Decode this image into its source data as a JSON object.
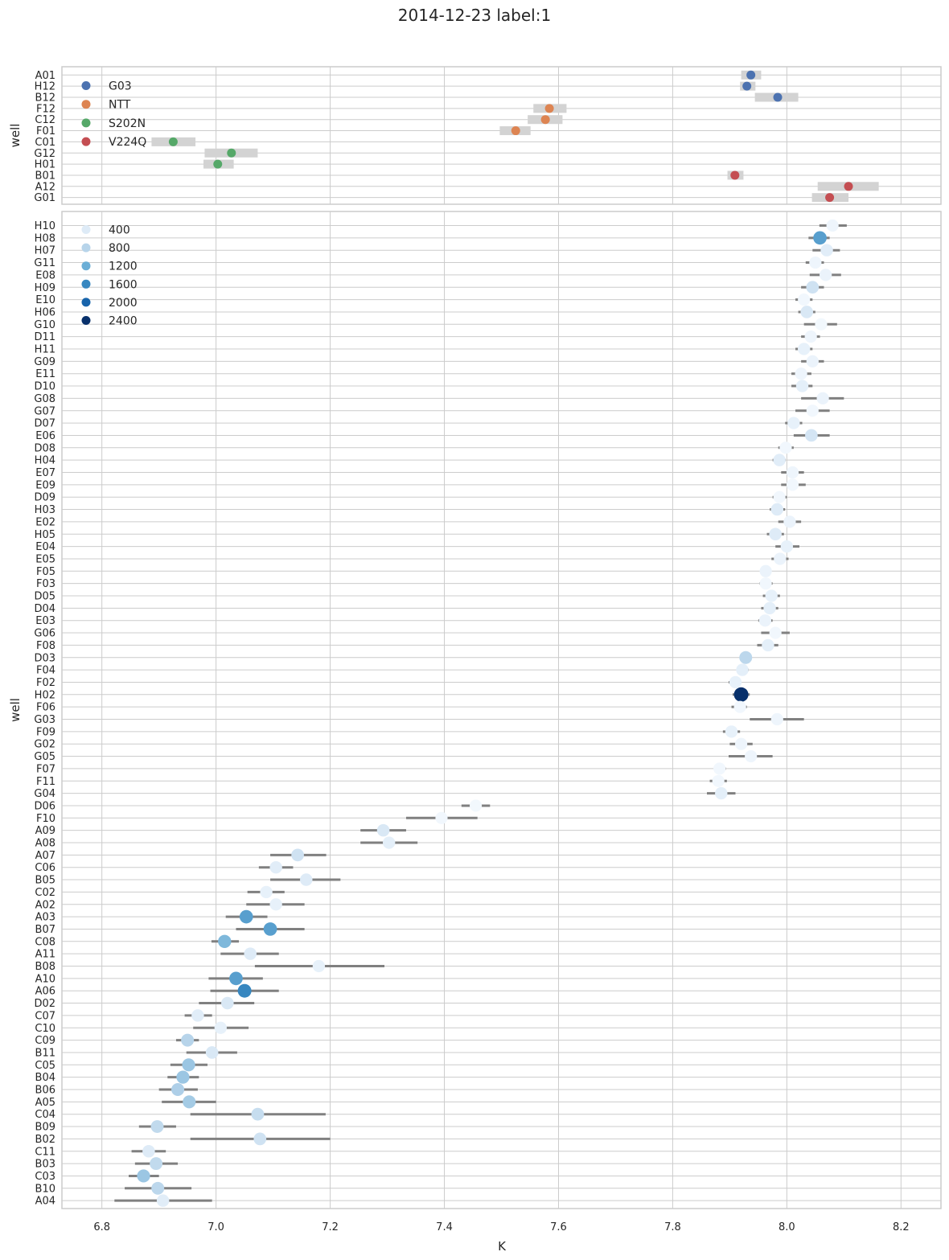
{
  "figure": {
    "title": "2014-12-23  label:1",
    "xlabel": "K",
    "xlim": [
      6.73,
      8.27
    ],
    "xticks": [
      "6.8",
      "7.0",
      "7.2",
      "7.4",
      "7.6",
      "7.8",
      "8.0",
      "8.2"
    ]
  },
  "chart_data": [
    {
      "type": "scatter",
      "panel": "top",
      "ylabel": "well",
      "xlim": [
        6.73,
        8.27
      ],
      "grid": true,
      "legend_placement": "upper-left",
      "legend_title": "",
      "series": [
        {
          "name": "G03",
          "color": "#4c72b0"
        },
        {
          "name": "NTT",
          "color": "#dd8452"
        },
        {
          "name": "S202N",
          "color": "#55a868"
        },
        {
          "name": "V224Q",
          "color": "#c44e52"
        }
      ],
      "error_bar_color": "#d3d3d3",
      "rows": [
        {
          "well": "A01",
          "series": "G03",
          "k": 7.937,
          "lo": 7.92,
          "hi": 7.955
        },
        {
          "well": "H12",
          "series": "G03",
          "k": 7.93,
          "lo": 7.918,
          "hi": 7.945
        },
        {
          "well": "B12",
          "series": "G03",
          "k": 7.984,
          "lo": 7.944,
          "hi": 8.02
        },
        {
          "well": "F12",
          "series": "NTT",
          "k": 7.584,
          "lo": 7.556,
          "hi": 7.614
        },
        {
          "well": "C12",
          "series": "NTT",
          "k": 7.577,
          "lo": 7.546,
          "hi": 7.607
        },
        {
          "well": "F01",
          "series": "NTT",
          "k": 7.525,
          "lo": 7.497,
          "hi": 7.551
        },
        {
          "well": "C01",
          "series": "S202N",
          "k": 6.925,
          "lo": 6.887,
          "hi": 6.964
        },
        {
          "well": "G12",
          "series": "S202N",
          "k": 7.027,
          "lo": 6.98,
          "hi": 7.073
        },
        {
          "well": "H01",
          "series": "S202N",
          "k": 7.003,
          "lo": 6.978,
          "hi": 7.031
        },
        {
          "well": "B01",
          "series": "V224Q",
          "k": 7.909,
          "lo": 7.896,
          "hi": 7.924
        },
        {
          "well": "A12",
          "series": "V224Q",
          "k": 8.108,
          "lo": 8.054,
          "hi": 8.161
        },
        {
          "well": "G01",
          "series": "V224Q",
          "k": 8.075,
          "lo": 8.044,
          "hi": 8.108
        }
      ]
    },
    {
      "type": "scatter",
      "panel": "bottom",
      "ylabel": "well",
      "xlim": [
        6.73,
        8.27
      ],
      "grid": true,
      "legend_placement": "upper-left",
      "legend_title": "",
      "legend_entries": [
        {
          "label": "400",
          "color": "#deebf7"
        },
        {
          "label": "800",
          "color": "#b7d4ea"
        },
        {
          "label": "1200",
          "color": "#6baed6"
        },
        {
          "label": "1600",
          "color": "#3787c0"
        },
        {
          "label": "2000",
          "color": "#1764ab"
        },
        {
          "label": "2400",
          "color": "#08306b"
        }
      ],
      "error_bar_color": "#808080",
      "rows": [
        {
          "well": "H10",
          "k": 8.08,
          "lo": 8.057,
          "hi": 8.105,
          "v": 150
        },
        {
          "well": "H08",
          "k": 8.058,
          "lo": 8.038,
          "hi": 8.075,
          "v": 1350
        },
        {
          "well": "H07",
          "k": 8.07,
          "lo": 8.045,
          "hi": 8.093,
          "v": 350
        },
        {
          "well": "G11",
          "k": 8.05,
          "lo": 8.033,
          "hi": 8.065,
          "v": 150
        },
        {
          "well": "E08",
          "k": 8.068,
          "lo": 8.04,
          "hi": 8.095,
          "v": 200
        },
        {
          "well": "H09",
          "k": 8.045,
          "lo": 8.025,
          "hi": 8.065,
          "v": 550
        },
        {
          "well": "E10",
          "k": 8.03,
          "lo": 8.015,
          "hi": 8.045,
          "v": 100
        },
        {
          "well": "H06",
          "k": 8.035,
          "lo": 8.02,
          "hi": 8.05,
          "v": 450
        },
        {
          "well": "G10",
          "k": 8.06,
          "lo": 8.03,
          "hi": 8.088,
          "v": 80
        },
        {
          "well": "D11",
          "k": 8.042,
          "lo": 8.025,
          "hi": 8.058,
          "v": 150
        },
        {
          "well": "H11",
          "k": 8.03,
          "lo": 8.015,
          "hi": 8.045,
          "v": 250
        },
        {
          "well": "G09",
          "k": 8.045,
          "lo": 8.025,
          "hi": 8.065,
          "v": 200
        },
        {
          "well": "E11",
          "k": 8.025,
          "lo": 8.008,
          "hi": 8.043,
          "v": 150
        },
        {
          "well": "D10",
          "k": 8.027,
          "lo": 8.008,
          "hi": 8.045,
          "v": 300
        },
        {
          "well": "G08",
          "k": 8.063,
          "lo": 8.025,
          "hi": 8.1,
          "v": 200
        },
        {
          "well": "G07",
          "k": 8.045,
          "lo": 8.015,
          "hi": 8.075,
          "v": 100
        },
        {
          "well": "D07",
          "k": 8.012,
          "lo": 7.997,
          "hi": 8.027,
          "v": 250
        },
        {
          "well": "E06",
          "k": 8.043,
          "lo": 8.012,
          "hi": 8.075,
          "v": 500
        },
        {
          "well": "D08",
          "k": 7.998,
          "lo": 7.985,
          "hi": 8.012,
          "v": 100
        },
        {
          "well": "H04",
          "k": 7.987,
          "lo": 7.975,
          "hi": 7.998,
          "v": 350
        },
        {
          "well": "E07",
          "k": 8.01,
          "lo": 7.99,
          "hi": 8.03,
          "v": 150
        },
        {
          "well": "E09",
          "k": 8.01,
          "lo": 7.99,
          "hi": 8.033,
          "v": 100
        },
        {
          "well": "D09",
          "k": 7.987,
          "lo": 7.975,
          "hi": 8.0,
          "v": 100
        },
        {
          "well": "H03",
          "k": 7.983,
          "lo": 7.97,
          "hi": 7.997,
          "v": 400
        },
        {
          "well": "E02",
          "k": 8.005,
          "lo": 7.985,
          "hi": 8.025,
          "v": 200
        },
        {
          "well": "H05",
          "k": 7.98,
          "lo": 7.965,
          "hi": 7.995,
          "v": 400
        },
        {
          "well": "E04",
          "k": 8.0,
          "lo": 7.98,
          "hi": 8.022,
          "v": 250
        },
        {
          "well": "E05",
          "k": 7.988,
          "lo": 7.973,
          "hi": 8.003,
          "v": 200
        },
        {
          "well": "F05",
          "k": 7.963,
          "lo": 7.953,
          "hi": 7.973,
          "v": 200
        },
        {
          "well": "F03",
          "k": 7.963,
          "lo": 7.952,
          "hi": 7.975,
          "v": 100
        },
        {
          "well": "D05",
          "k": 7.973,
          "lo": 7.958,
          "hi": 7.988,
          "v": 250
        },
        {
          "well": "D04",
          "k": 7.97,
          "lo": 7.955,
          "hi": 7.985,
          "v": 300
        },
        {
          "well": "E03",
          "k": 7.962,
          "lo": 7.95,
          "hi": 7.975,
          "v": 200
        },
        {
          "well": "G06",
          "k": 7.98,
          "lo": 7.955,
          "hi": 8.005,
          "v": 100
        },
        {
          "well": "F08",
          "k": 7.967,
          "lo": 7.948,
          "hi": 7.985,
          "v": 300
        },
        {
          "well": "D03",
          "k": 7.928,
          "lo": 7.918,
          "hi": 7.938,
          "v": 750
        },
        {
          "well": "F04",
          "k": 7.922,
          "lo": 7.912,
          "hi": 7.933,
          "v": 300
        },
        {
          "well": "F02",
          "k": 7.91,
          "lo": 7.898,
          "hi": 7.92,
          "v": 250
        },
        {
          "well": "H02",
          "k": 7.92,
          "lo": 7.905,
          "hi": 7.935,
          "v": 2400
        },
        {
          "well": "F06",
          "k": 7.918,
          "lo": 7.903,
          "hi": 7.93,
          "v": 100
        },
        {
          "well": "G03",
          "k": 7.983,
          "lo": 7.935,
          "hi": 8.03,
          "v": 150
        },
        {
          "well": "F09",
          "k": 7.903,
          "lo": 7.888,
          "hi": 7.918,
          "v": 250
        },
        {
          "well": "G02",
          "k": 7.92,
          "lo": 7.9,
          "hi": 7.94,
          "v": 150
        },
        {
          "well": "G05",
          "k": 7.937,
          "lo": 7.898,
          "hi": 7.975,
          "v": 150
        },
        {
          "well": "F07",
          "k": 7.882,
          "lo": 7.872,
          "hi": 7.893,
          "v": 100
        },
        {
          "well": "F11",
          "k": 7.88,
          "lo": 7.865,
          "hi": 7.895,
          "v": 100
        },
        {
          "well": "G04",
          "k": 7.885,
          "lo": 7.86,
          "hi": 7.91,
          "v": 300
        },
        {
          "well": "D06",
          "k": 7.455,
          "lo": 7.43,
          "hi": 7.48,
          "v": 80
        },
        {
          "well": "F10",
          "k": 7.395,
          "lo": 7.333,
          "hi": 7.458,
          "v": 100
        },
        {
          "well": "A09",
          "k": 7.293,
          "lo": 7.253,
          "hi": 7.333,
          "v": 450
        },
        {
          "well": "A08",
          "k": 7.303,
          "lo": 7.253,
          "hi": 7.353,
          "v": 300
        },
        {
          "well": "A07",
          "k": 7.143,
          "lo": 7.095,
          "hi": 7.193,
          "v": 550
        },
        {
          "well": "C06",
          "k": 7.105,
          "lo": 7.075,
          "hi": 7.135,
          "v": 350
        },
        {
          "well": "B05",
          "k": 7.158,
          "lo": 7.095,
          "hi": 7.218,
          "v": 400
        },
        {
          "well": "C02",
          "k": 7.088,
          "lo": 7.055,
          "hi": 7.12,
          "v": 250
        },
        {
          "well": "A02",
          "k": 7.105,
          "lo": 7.053,
          "hi": 7.155,
          "v": 250
        },
        {
          "well": "A03",
          "k": 7.053,
          "lo": 7.017,
          "hi": 7.09,
          "v": 1350
        },
        {
          "well": "B07",
          "k": 7.095,
          "lo": 7.035,
          "hi": 7.155,
          "v": 1350
        },
        {
          "well": "C08",
          "k": 7.015,
          "lo": 6.992,
          "hi": 7.04,
          "v": 1100
        },
        {
          "well": "A11",
          "k": 7.06,
          "lo": 7.008,
          "hi": 7.11,
          "v": 400
        },
        {
          "well": "B08",
          "k": 7.18,
          "lo": 7.068,
          "hi": 7.295,
          "v": 250
        },
        {
          "well": "A10",
          "k": 7.035,
          "lo": 6.987,
          "hi": 7.082,
          "v": 1350
        },
        {
          "well": "A06",
          "k": 7.05,
          "lo": 6.99,
          "hi": 7.11,
          "v": 1600
        },
        {
          "well": "D02",
          "k": 7.02,
          "lo": 6.97,
          "hi": 7.067,
          "v": 450
        },
        {
          "well": "C07",
          "k": 6.968,
          "lo": 6.945,
          "hi": 6.993,
          "v": 350
        },
        {
          "well": "C10",
          "k": 7.008,
          "lo": 6.96,
          "hi": 7.057,
          "v": 250
        },
        {
          "well": "C09",
          "k": 6.95,
          "lo": 6.93,
          "hi": 6.97,
          "v": 800
        },
        {
          "well": "B11",
          "k": 6.993,
          "lo": 6.948,
          "hi": 7.037,
          "v": 450
        },
        {
          "well": "C05",
          "k": 6.952,
          "lo": 6.92,
          "hi": 6.985,
          "v": 950
        },
        {
          "well": "B04",
          "k": 6.942,
          "lo": 6.915,
          "hi": 6.97,
          "v": 950
        },
        {
          "well": "B06",
          "k": 6.933,
          "lo": 6.9,
          "hi": 6.968,
          "v": 850
        },
        {
          "well": "A05",
          "k": 6.953,
          "lo": 6.905,
          "hi": 7.0,
          "v": 900
        },
        {
          "well": "C04",
          "k": 7.073,
          "lo": 6.955,
          "hi": 7.192,
          "v": 650
        },
        {
          "well": "B09",
          "k": 6.897,
          "lo": 6.865,
          "hi": 6.93,
          "v": 700
        },
        {
          "well": "B02",
          "k": 7.077,
          "lo": 6.955,
          "hi": 7.2,
          "v": 550
        },
        {
          "well": "C11",
          "k": 6.882,
          "lo": 6.852,
          "hi": 6.912,
          "v": 400
        },
        {
          "well": "B03",
          "k": 6.895,
          "lo": 6.858,
          "hi": 6.933,
          "v": 700
        },
        {
          "well": "C03",
          "k": 6.873,
          "lo": 6.847,
          "hi": 6.9,
          "v": 950
        },
        {
          "well": "B10",
          "k": 6.898,
          "lo": 6.84,
          "hi": 6.957,
          "v": 750
        },
        {
          "well": "A04",
          "k": 6.907,
          "lo": 6.822,
          "hi": 6.993,
          "v": 350
        }
      ]
    }
  ]
}
